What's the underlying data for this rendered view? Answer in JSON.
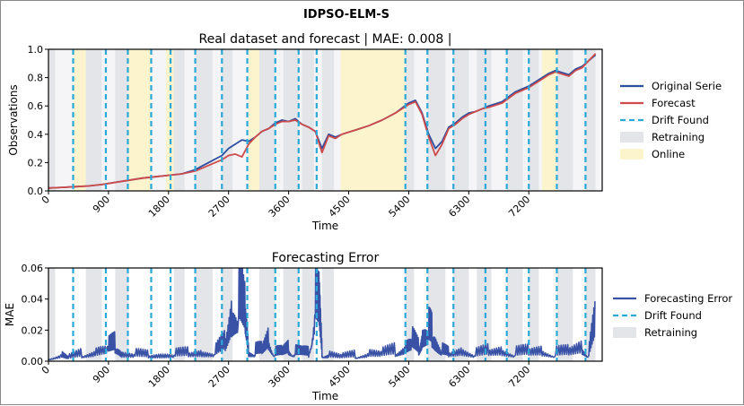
{
  "suptitle": "IDPSO-ELM-S",
  "chart_data": [
    {
      "type": "line",
      "title": "Real dataset and forecast | MAE: 0.008 |",
      "xlabel": "Time",
      "ylabel": "Observations",
      "xlim": [
        0,
        8300
      ],
      "ylim": [
        0.0,
        1.0
      ],
      "xticks": [
        0,
        900,
        1800,
        2700,
        3600,
        4500,
        5400,
        6300,
        7200
      ],
      "yticks": [
        "0.0",
        "0.2",
        "0.4",
        "0.6",
        "0.8",
        "1.0"
      ],
      "legend_position": "right",
      "legend": [
        "Original Serie",
        "Forecast",
        "Drift Found",
        "Retraining",
        "Online"
      ],
      "colors": {
        "original": "#2b4ea0",
        "forecast": "#cf4a4a",
        "drift": "#2aa8d8",
        "retraining": "#e3e5e8",
        "online": "#fbf4cc",
        "background": "#f5f5f7"
      },
      "drift_found_x": [
        370,
        860,
        1190,
        1540,
        1830,
        2200,
        2600,
        2980,
        3400,
        3750,
        4020,
        5350,
        5680,
        6070,
        6550,
        6870,
        7200,
        7620,
        8050
      ],
      "online_intervals": [
        [
          380,
          560
        ],
        [
          1200,
          1540
        ],
        [
          1760,
          1880
        ],
        [
          3000,
          3160
        ],
        [
          4380,
          5350
        ],
        [
          7400,
          7640
        ]
      ],
      "retraining_intervals": [
        [
          0,
          100
        ],
        [
          560,
          800
        ],
        [
          1000,
          1200
        ],
        [
          1880,
          2040
        ],
        [
          2200,
          2460
        ],
        [
          2600,
          2760
        ],
        [
          3160,
          3400
        ],
        [
          3520,
          3750
        ],
        [
          3800,
          3980
        ],
        [
          4100,
          4280
        ],
        [
          5350,
          5480
        ],
        [
          5680,
          5950
        ],
        [
          6070,
          6300
        ],
        [
          6420,
          6640
        ],
        [
          6870,
          7110
        ],
        [
          7200,
          7350
        ],
        [
          7620,
          7860
        ],
        [
          8050,
          8200
        ]
      ],
      "series": [
        {
          "name": "Original Serie",
          "x": [
            0,
            200,
            400,
            600,
            800,
            1000,
            1200,
            1400,
            1600,
            1800,
            2000,
            2200,
            2400,
            2600,
            2700,
            2800,
            2900,
            3000,
            3100,
            3200,
            3300,
            3400,
            3500,
            3600,
            3700,
            3800,
            3900,
            4000,
            4100,
            4200,
            4300,
            4400,
            4600,
            4800,
            5000,
            5200,
            5400,
            5500,
            5600,
            5700,
            5800,
            5900,
            6000,
            6100,
            6200,
            6300,
            6400,
            6500,
            6600,
            6800,
            7000,
            7200,
            7400,
            7500,
            7600,
            7800,
            7900,
            8000,
            8100,
            8200
          ],
          "y": [
            0.02,
            0.025,
            0.03,
            0.035,
            0.045,
            0.06,
            0.075,
            0.09,
            0.1,
            0.11,
            0.12,
            0.15,
            0.2,
            0.25,
            0.3,
            0.33,
            0.36,
            0.35,
            0.38,
            0.42,
            0.44,
            0.48,
            0.5,
            0.49,
            0.51,
            0.47,
            0.45,
            0.42,
            0.3,
            0.4,
            0.38,
            0.4,
            0.43,
            0.46,
            0.5,
            0.55,
            0.62,
            0.64,
            0.55,
            0.4,
            0.3,
            0.35,
            0.45,
            0.48,
            0.52,
            0.55,
            0.56,
            0.58,
            0.6,
            0.63,
            0.7,
            0.74,
            0.8,
            0.83,
            0.85,
            0.82,
            0.86,
            0.88,
            0.92,
            0.96
          ]
        },
        {
          "name": "Forecast",
          "x": [
            0,
            200,
            400,
            600,
            800,
            1000,
            1200,
            1400,
            1600,
            1800,
            2000,
            2200,
            2400,
            2600,
            2700,
            2800,
            2900,
            3000,
            3100,
            3200,
            3300,
            3400,
            3500,
            3600,
            3700,
            3800,
            3900,
            4000,
            4100,
            4200,
            4300,
            4400,
            4600,
            4800,
            5000,
            5200,
            5400,
            5500,
            5600,
            5700,
            5800,
            5900,
            6000,
            6100,
            6200,
            6300,
            6400,
            6500,
            6600,
            6800,
            7000,
            7200,
            7400,
            7500,
            7600,
            7800,
            7900,
            8000,
            8100,
            8200
          ],
          "y": [
            0.02,
            0.025,
            0.03,
            0.035,
            0.045,
            0.06,
            0.075,
            0.09,
            0.1,
            0.11,
            0.12,
            0.14,
            0.18,
            0.22,
            0.25,
            0.26,
            0.24,
            0.33,
            0.38,
            0.42,
            0.44,
            0.47,
            0.49,
            0.49,
            0.5,
            0.47,
            0.45,
            0.42,
            0.27,
            0.39,
            0.37,
            0.4,
            0.43,
            0.46,
            0.5,
            0.55,
            0.61,
            0.63,
            0.54,
            0.38,
            0.25,
            0.33,
            0.44,
            0.47,
            0.51,
            0.54,
            0.56,
            0.58,
            0.59,
            0.62,
            0.69,
            0.73,
            0.79,
            0.82,
            0.84,
            0.81,
            0.85,
            0.87,
            0.92,
            0.97
          ]
        }
      ]
    },
    {
      "type": "line",
      "title": "Forecasting Error",
      "xlabel": "Time",
      "ylabel": "MAE",
      "xlim": [
        0,
        8300
      ],
      "ylim": [
        0.0,
        0.06
      ],
      "xticks": [
        0,
        900,
        1800,
        2700,
        3600,
        4500,
        5400,
        6300,
        7200
      ],
      "yticks": [
        "0.00",
        "0.02",
        "0.04",
        "0.06"
      ],
      "legend_position": "right",
      "legend": [
        "Forecasting Error",
        "Drift Found",
        "Retraining"
      ],
      "colors": {
        "error": "#3a52a6",
        "drift": "#2aa8d8",
        "retraining": "#e3e5e8"
      },
      "drift_found_x": [
        370,
        860,
        1190,
        1540,
        1830,
        2200,
        2600,
        2980,
        3400,
        3750,
        4020,
        5350,
        5680,
        6070,
        6550,
        6870,
        7200,
        7620,
        8050
      ],
      "retraining_intervals": [
        [
          0,
          100
        ],
        [
          560,
          800
        ],
        [
          1000,
          1200
        ],
        [
          1880,
          2040
        ],
        [
          2200,
          2460
        ],
        [
          2600,
          2760
        ],
        [
          3160,
          3400
        ],
        [
          3520,
          3750
        ],
        [
          3800,
          3980
        ],
        [
          4100,
          4280
        ],
        [
          5350,
          5480
        ],
        [
          5680,
          5950
        ],
        [
          6070,
          6300
        ],
        [
          6420,
          6640
        ],
        [
          6870,
          7110
        ],
        [
          7200,
          7350
        ],
        [
          7620,
          7860
        ],
        [
          8050,
          8200
        ]
      ],
      "series": [
        {
          "name": "Forecasting Error",
          "x": [
            0,
            200,
            300,
            500,
            700,
            900,
            1000,
            1100,
            1300,
            1500,
            1700,
            1900,
            2100,
            2300,
            2500,
            2650,
            2750,
            2850,
            2950,
            3000,
            3100,
            3200,
            3300,
            3400,
            3500,
            3600,
            3700,
            3800,
            3900,
            4000,
            4050,
            4100,
            4200,
            4400,
            4600,
            4800,
            5000,
            5200,
            5350,
            5450,
            5550,
            5600,
            5700,
            5750,
            5800,
            5900,
            6000,
            6200,
            6400,
            6600,
            6800,
            7000,
            7200,
            7400,
            7600,
            7800,
            8000,
            8100,
            8200
          ],
          "y": [
            0.003,
            0.006,
            0.004,
            0.007,
            0.008,
            0.014,
            0.016,
            0.006,
            0.007,
            0.006,
            0.005,
            0.007,
            0.008,
            0.007,
            0.009,
            0.018,
            0.04,
            0.06,
            0.045,
            0.008,
            0.01,
            0.012,
            0.02,
            0.008,
            0.01,
            0.012,
            0.009,
            0.01,
            0.008,
            0.06,
            0.06,
            0.008,
            0.006,
            0.005,
            0.006,
            0.007,
            0.008,
            0.01,
            0.012,
            0.02,
            0.012,
            0.02,
            0.03,
            0.026,
            0.016,
            0.01,
            0.008,
            0.009,
            0.007,
            0.01,
            0.009,
            0.008,
            0.01,
            0.009,
            0.008,
            0.01,
            0.012,
            0.008,
            0.04
          ]
        }
      ]
    }
  ]
}
